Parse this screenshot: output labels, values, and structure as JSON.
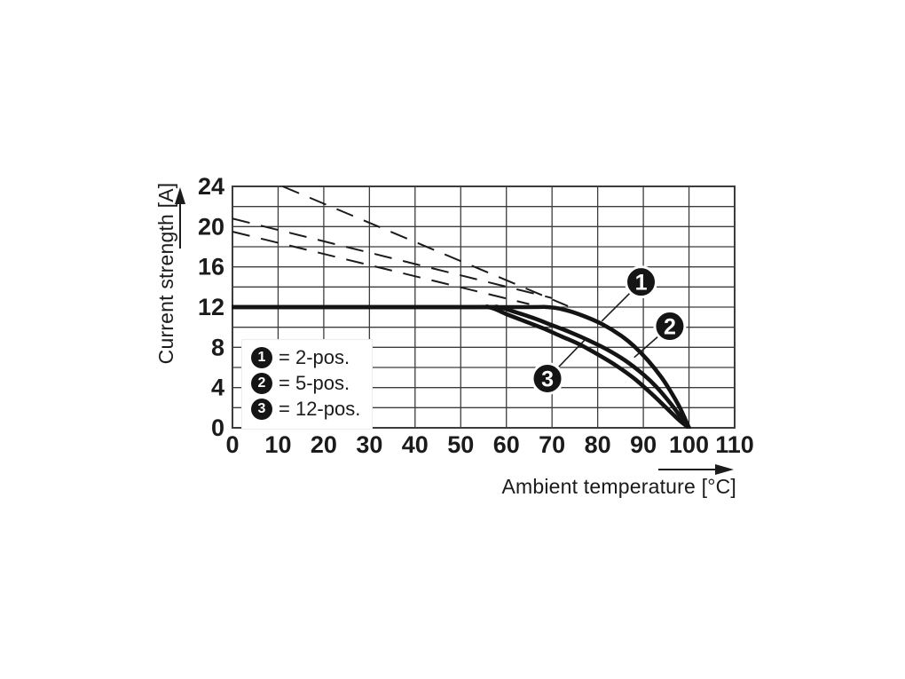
{
  "colors": {
    "background": "#ffffff",
    "ink": "#1b1b1b",
    "grid": "#3c3c3c",
    "curve": "#141414",
    "callout_fill": "#151515",
    "callout_text": "#ffffff"
  },
  "chart_data": {
    "type": "line",
    "title": "",
    "xlabel": "Ambient temperature [°C]",
    "ylabel": "Current strength [A]",
    "xlim": [
      0,
      110
    ],
    "ylim": [
      0,
      24
    ],
    "grid": true,
    "x_grid_step": 10,
    "y_grid_step": 2,
    "x_tick_labels": [
      0,
      10,
      20,
      30,
      40,
      50,
      60,
      70,
      80,
      90,
      100,
      110
    ],
    "y_tick_labels": [
      0,
      4,
      8,
      12,
      16,
      20,
      24
    ],
    "series": [
      {
        "name": "2-pos.",
        "callout": "1",
        "style": "solid",
        "points": [
          [
            0,
            12
          ],
          [
            60,
            12
          ],
          [
            69,
            12
          ],
          [
            73,
            11.7
          ],
          [
            77,
            11.1
          ],
          [
            81,
            10.3
          ],
          [
            85,
            9.2
          ],
          [
            88,
            8.1
          ],
          [
            91,
            6.7
          ],
          [
            94,
            5.0
          ],
          [
            96,
            3.6
          ],
          [
            98,
            2.0
          ],
          [
            100,
            0
          ]
        ]
      },
      {
        "name": "5-pos.",
        "callout": "2",
        "style": "solid",
        "points": [
          [
            0,
            12
          ],
          [
            52,
            12
          ],
          [
            58,
            12
          ],
          [
            62,
            11.5
          ],
          [
            66,
            10.9
          ],
          [
            70,
            10.2
          ],
          [
            74,
            9.5
          ],
          [
            78,
            8.7
          ],
          [
            82,
            7.8
          ],
          [
            86,
            6.7
          ],
          [
            90,
            5.3
          ],
          [
            93,
            4.0
          ],
          [
            96,
            2.4
          ],
          [
            98,
            1.2
          ],
          [
            100,
            0
          ]
        ]
      },
      {
        "name": "12-pos.",
        "callout": "3",
        "style": "solid",
        "points": [
          [
            0,
            12
          ],
          [
            50,
            12
          ],
          [
            56,
            12
          ],
          [
            60,
            11.3
          ],
          [
            64,
            10.6
          ],
          [
            68,
            9.9
          ],
          [
            72,
            9.1
          ],
          [
            76,
            8.3
          ],
          [
            80,
            7.3
          ],
          [
            84,
            6.2
          ],
          [
            88,
            4.9
          ],
          [
            92,
            3.3
          ],
          [
            95,
            2.0
          ],
          [
            98,
            0.7
          ],
          [
            100,
            0
          ]
        ]
      }
    ],
    "dashed_lines": [
      {
        "name": "2-pos. capacity line",
        "points": [
          [
            11,
            24
          ],
          [
            73.5,
            12.1
          ]
        ]
      },
      {
        "name": "5-pos. capacity line",
        "points": [
          [
            0,
            20.8
          ],
          [
            70,
            12.9
          ]
        ]
      },
      {
        "name": "12-pos. capacity line",
        "points": [
          [
            0,
            19.5
          ],
          [
            65,
            12.3
          ]
        ]
      }
    ],
    "callouts": [
      {
        "label": "1",
        "circle": [
          89.5,
          14.5
        ],
        "target": [
          80.9,
          10.6
        ]
      },
      {
        "label": "2",
        "circle": [
          95.8,
          10.1
        ],
        "target": [
          88.0,
          7.0
        ]
      },
      {
        "label": "3",
        "circle": [
          69.0,
          4.9
        ],
        "target": [
          77.3,
          8.8
        ]
      }
    ],
    "legend": {
      "position": "lower-left",
      "items": [
        {
          "symbol": "1",
          "label": "= 2-pos."
        },
        {
          "symbol": "2",
          "label": "= 5-pos."
        },
        {
          "symbol": "3",
          "label": "= 12-pos."
        }
      ]
    }
  }
}
